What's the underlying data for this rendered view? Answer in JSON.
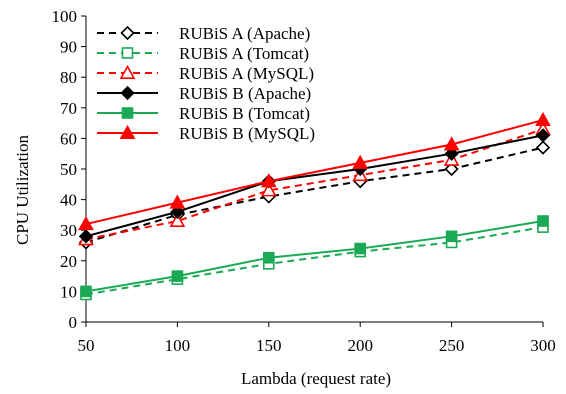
{
  "chart_data": {
    "type": "line",
    "title": "",
    "xlabel": "Lambda (request rate)",
    "ylabel": "CPU Utilization",
    "x": [
      50,
      100,
      150,
      200,
      250,
      300
    ],
    "xlim": [
      50,
      300
    ],
    "ylim": [
      0,
      100
    ],
    "yticks": [
      0,
      10,
      20,
      30,
      40,
      50,
      60,
      70,
      80,
      90,
      100
    ],
    "grid": false,
    "legend_position": "top-left",
    "series": [
      {
        "name": "RUBiS A (Apache)",
        "values": [
          26,
          35,
          41,
          46,
          50,
          57
        ],
        "color": "#000000",
        "dash": true,
        "marker": "diamond",
        "filled": false
      },
      {
        "name": "RUBiS A (Tomcat)",
        "values": [
          9,
          14,
          19,
          23,
          26,
          31
        ],
        "color": "#1aaa55",
        "dash": true,
        "marker": "square",
        "filled": false
      },
      {
        "name": "RUBiS A (MySQL)",
        "values": [
          27,
          33,
          43,
          48,
          53,
          63
        ],
        "color": "#ff0000",
        "dash": true,
        "marker": "triangle",
        "filled": false
      },
      {
        "name": "RUBiS B (Apache)",
        "values": [
          28,
          36,
          46,
          50,
          55,
          61
        ],
        "color": "#000000",
        "dash": false,
        "marker": "diamond",
        "filled": true
      },
      {
        "name": "RUBiS B (Tomcat)",
        "values": [
          10,
          15,
          21,
          24,
          28,
          33
        ],
        "color": "#1aaa55",
        "dash": false,
        "marker": "square",
        "filled": true
      },
      {
        "name": "RUBiS B (MySQL)",
        "values": [
          32,
          39,
          46,
          52,
          58,
          66
        ],
        "color": "#ff0000",
        "dash": false,
        "marker": "triangle",
        "filled": true
      }
    ]
  }
}
